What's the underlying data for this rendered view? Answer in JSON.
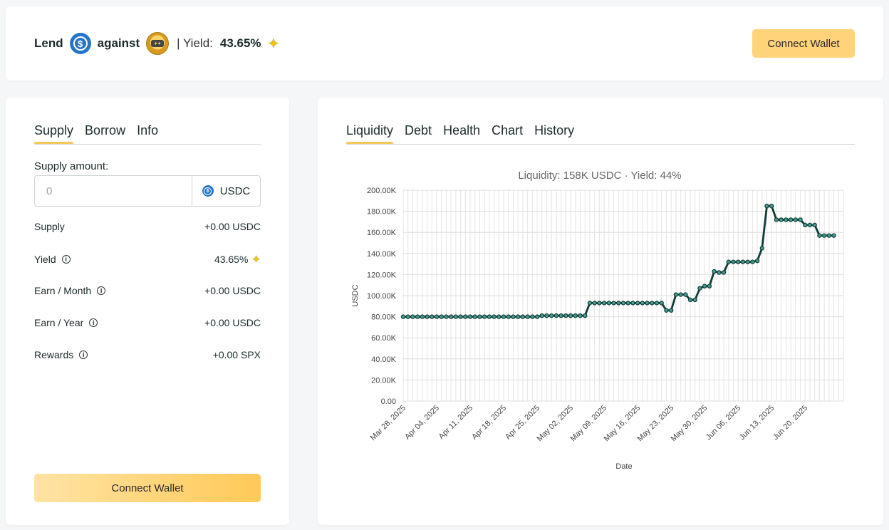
{
  "header": {
    "lend_label": "Lend",
    "lend_coin_icon": "usdc-coin-icon",
    "against_label": "against",
    "collateral_coin_icon": "spx-coin-icon",
    "yield_label": "| Yield:",
    "yield_value": "43.65%",
    "connect_wallet_label": "Connect Wallet"
  },
  "left_panel": {
    "tabs": [
      {
        "label": "Supply",
        "active": true
      },
      {
        "label": "Borrow",
        "active": false
      },
      {
        "label": "Info",
        "active": false
      }
    ],
    "supply_amount_label": "Supply amount:",
    "amount_placeholder": "0",
    "unit": "USDC",
    "stats": [
      {
        "label": "Supply",
        "value": "+0.00 USDC",
        "info": false
      },
      {
        "label": "Yield",
        "value": "43.65%",
        "info": true
      },
      {
        "label": "Earn / Month",
        "value": "+0.00 USDC",
        "info": true
      },
      {
        "label": "Earn / Year",
        "value": "+0.00 USDC",
        "info": true
      },
      {
        "label": "Rewards",
        "value": "+0.00 SPX",
        "info": true
      }
    ],
    "connect_wallet_label": "Connect Wallet"
  },
  "right_panel": {
    "tabs": [
      {
        "label": "Liquidity",
        "active": true
      },
      {
        "label": "Debt",
        "active": false
      },
      {
        "label": "Health",
        "active": false
      },
      {
        "label": "Chart",
        "active": false
      },
      {
        "label": "History",
        "active": false
      }
    ]
  },
  "colors": {
    "accent": "#f7c75c",
    "button": "#ffd37a",
    "line": "#0e3b36",
    "marker_fill": "#4a9a8e",
    "usdc": "#2775ca"
  },
  "chart_data": {
    "type": "line",
    "title": "Liquidity: 158K USDC · Yield: 44%",
    "xlabel": "Date",
    "ylabel": "USDC",
    "ylim": [
      0,
      200000
    ],
    "y_ticks": [
      "0.00",
      "20.00K",
      "40.00K",
      "60.00K",
      "80.00K",
      "100.00K",
      "120.00K",
      "140.00K",
      "160.00K",
      "180.00K",
      "200.00K"
    ],
    "x_ticks": [
      {
        "label": "Mar 28, 2025",
        "date": "2025-03-28"
      },
      {
        "label": "Apr 04, 2025",
        "date": "2025-04-04"
      },
      {
        "label": "Apr 11, 2025",
        "date": "2025-04-11"
      },
      {
        "label": "Apr 18, 2025",
        "date": "2025-04-18"
      },
      {
        "label": "Apr 25, 2025",
        "date": "2025-04-25"
      },
      {
        "label": "May 02, 2025",
        "date": "2025-05-02"
      },
      {
        "label": "May 09, 2025",
        "date": "2025-05-09"
      },
      {
        "label": "May 16, 2025",
        "date": "2025-05-16"
      },
      {
        "label": "May 23, 2025",
        "date": "2025-05-23"
      },
      {
        "label": "May 30, 2025",
        "date": "2025-05-30"
      },
      {
        "label": "Jun 06, 2025",
        "date": "2025-06-06"
      },
      {
        "label": "Jun 13, 2025",
        "date": "2025-06-13"
      },
      {
        "label": "Jun 20, 2025",
        "date": "2025-06-20"
      }
    ],
    "x_start": "2025-03-28",
    "x_end": "2025-06-28",
    "grid": true,
    "series": [
      {
        "name": "Liquidity",
        "values": [
          [
            "2025-03-28",
            80000
          ],
          [
            "2025-03-29",
            80000
          ],
          [
            "2025-03-30",
            80000
          ],
          [
            "2025-03-31",
            80000
          ],
          [
            "2025-04-01",
            80000
          ],
          [
            "2025-04-02",
            80000
          ],
          [
            "2025-04-03",
            80000
          ],
          [
            "2025-04-04",
            80000
          ],
          [
            "2025-04-05",
            80000
          ],
          [
            "2025-04-06",
            80000
          ],
          [
            "2025-04-07",
            80000
          ],
          [
            "2025-04-08",
            80000
          ],
          [
            "2025-04-09",
            80000
          ],
          [
            "2025-04-10",
            80000
          ],
          [
            "2025-04-11",
            80000
          ],
          [
            "2025-04-12",
            80000
          ],
          [
            "2025-04-13",
            80000
          ],
          [
            "2025-04-14",
            80000
          ],
          [
            "2025-04-15",
            80000
          ],
          [
            "2025-04-16",
            80000
          ],
          [
            "2025-04-17",
            80000
          ],
          [
            "2025-04-18",
            80000
          ],
          [
            "2025-04-19",
            80000
          ],
          [
            "2025-04-20",
            80000
          ],
          [
            "2025-04-21",
            80000
          ],
          [
            "2025-04-22",
            80000
          ],
          [
            "2025-04-23",
            80000
          ],
          [
            "2025-04-24",
            80000
          ],
          [
            "2025-04-25",
            80000
          ],
          [
            "2025-04-26",
            81000
          ],
          [
            "2025-04-27",
            81000
          ],
          [
            "2025-04-28",
            81000
          ],
          [
            "2025-04-29",
            81000
          ],
          [
            "2025-04-30",
            81000
          ],
          [
            "2025-05-01",
            81000
          ],
          [
            "2025-05-02",
            81000
          ],
          [
            "2025-05-03",
            81000
          ],
          [
            "2025-05-04",
            81000
          ],
          [
            "2025-05-05",
            81000
          ],
          [
            "2025-05-06",
            93000
          ],
          [
            "2025-05-07",
            93000
          ],
          [
            "2025-05-08",
            93000
          ],
          [
            "2025-05-09",
            93000
          ],
          [
            "2025-05-10",
            93000
          ],
          [
            "2025-05-11",
            93000
          ],
          [
            "2025-05-12",
            93000
          ],
          [
            "2025-05-13",
            93000
          ],
          [
            "2025-05-14",
            93000
          ],
          [
            "2025-05-15",
            93000
          ],
          [
            "2025-05-16",
            93000
          ],
          [
            "2025-05-17",
            93000
          ],
          [
            "2025-05-18",
            93000
          ],
          [
            "2025-05-19",
            93000
          ],
          [
            "2025-05-20",
            93000
          ],
          [
            "2025-05-21",
            93000
          ],
          [
            "2025-05-22",
            86000
          ],
          [
            "2025-05-23",
            86000
          ],
          [
            "2025-05-24",
            101000
          ],
          [
            "2025-05-25",
            101000
          ],
          [
            "2025-05-26",
            101000
          ],
          [
            "2025-05-27",
            96000
          ],
          [
            "2025-05-28",
            96000
          ],
          [
            "2025-05-29",
            107000
          ],
          [
            "2025-05-30",
            109000
          ],
          [
            "2025-05-31",
            109000
          ],
          [
            "2025-06-01",
            123000
          ],
          [
            "2025-06-02",
            122000
          ],
          [
            "2025-06-03",
            122000
          ],
          [
            "2025-06-04",
            132000
          ],
          [
            "2025-06-05",
            132000
          ],
          [
            "2025-06-06",
            132000
          ],
          [
            "2025-06-07",
            132000
          ],
          [
            "2025-06-08",
            132000
          ],
          [
            "2025-06-09",
            132000
          ],
          [
            "2025-06-10",
            133000
          ],
          [
            "2025-06-11",
            145000
          ],
          [
            "2025-06-12",
            185000
          ],
          [
            "2025-06-13",
            185000
          ],
          [
            "2025-06-14",
            172000
          ],
          [
            "2025-06-15",
            172000
          ],
          [
            "2025-06-16",
            172000
          ],
          [
            "2025-06-17",
            172000
          ],
          [
            "2025-06-18",
            172000
          ],
          [
            "2025-06-19",
            172000
          ],
          [
            "2025-06-20",
            167000
          ],
          [
            "2025-06-21",
            167000
          ],
          [
            "2025-06-22",
            167000
          ],
          [
            "2025-06-23",
            157000
          ],
          [
            "2025-06-24",
            157000
          ],
          [
            "2025-06-25",
            157000
          ],
          [
            "2025-06-26",
            157000
          ]
        ]
      }
    ]
  }
}
